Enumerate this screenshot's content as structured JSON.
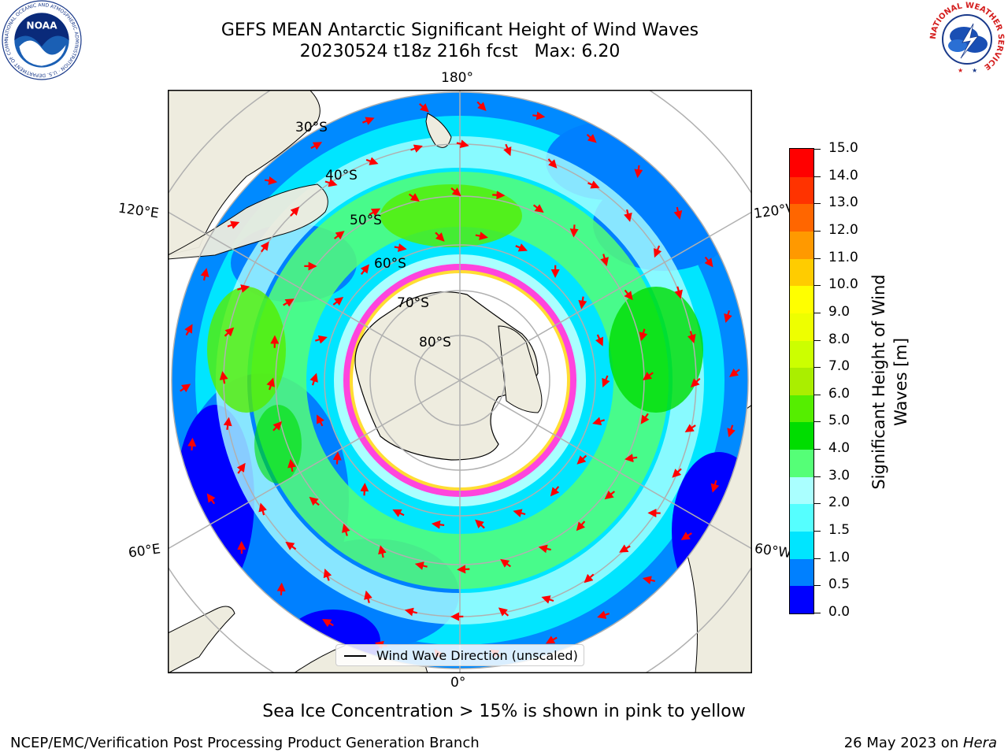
{
  "title": {
    "line1": "GEFS MEAN Antarctic Significant Height of Wind Waves",
    "line2": "20230524 t18z 216h fcst   Max: 6.20"
  },
  "logos": {
    "noaa": {
      "text": "NOAA",
      "ring_text": "NATIONAL OCEANIC AND ATMOSPHERIC ADMINISTRATION · U.S. DEPARTMENT OF COMMERCE"
    },
    "nws": {
      "ring_text": "NATIONAL WEATHER SERVICE"
    }
  },
  "map": {
    "projection": "south-polar-stereographic",
    "longitude_labels": {
      "top": "180°",
      "bottom": "0°",
      "upper_left": "120°E",
      "upper_right": "120°W",
      "lower_left": "60°E",
      "lower_right": "60°W"
    },
    "latitude_labels": [
      "30°S",
      "40°S",
      "50°S",
      "60°S",
      "70°S",
      "80°S"
    ],
    "legend": {
      "label": "Wind Wave Direction (unscaled)"
    },
    "colors": {
      "land": "#eeecdf",
      "sea_ice_pink": "#ff44dd",
      "sea_ice_yellow": "#ffdd33",
      "arrow": "#ff0000",
      "grid": "#b0b0b0"
    }
  },
  "colorbar": {
    "label": "Significant Height of Wind\nWaves [m]",
    "ticks": [
      "0.0",
      "0.5",
      "1.0",
      "1.5",
      "2.0",
      "3.0",
      "4.0",
      "5.0",
      "6.0",
      "7.0",
      "8.0",
      "9.0",
      "10.0",
      "11.0",
      "12.0",
      "13.0",
      "14.0",
      "15.0"
    ],
    "colors": [
      "#0000ff",
      "#0080ff",
      "#00e5ff",
      "#55ffff",
      "#aaffff",
      "#55ff77",
      "#00dd00",
      "#55ee00",
      "#aaee00",
      "#ccff00",
      "#eeff00",
      "#ffff00",
      "#ffcc00",
      "#ff9900",
      "#ff6600",
      "#ff3300",
      "#ff0000"
    ]
  },
  "footnote": "Sea Ice Concentration > 15% is shown in pink to yellow",
  "credit": "NCEP/EMC/Verification Post Processing Product Generation Branch",
  "date": {
    "text": "26 May 2023 on ",
    "host": "Hera"
  }
}
